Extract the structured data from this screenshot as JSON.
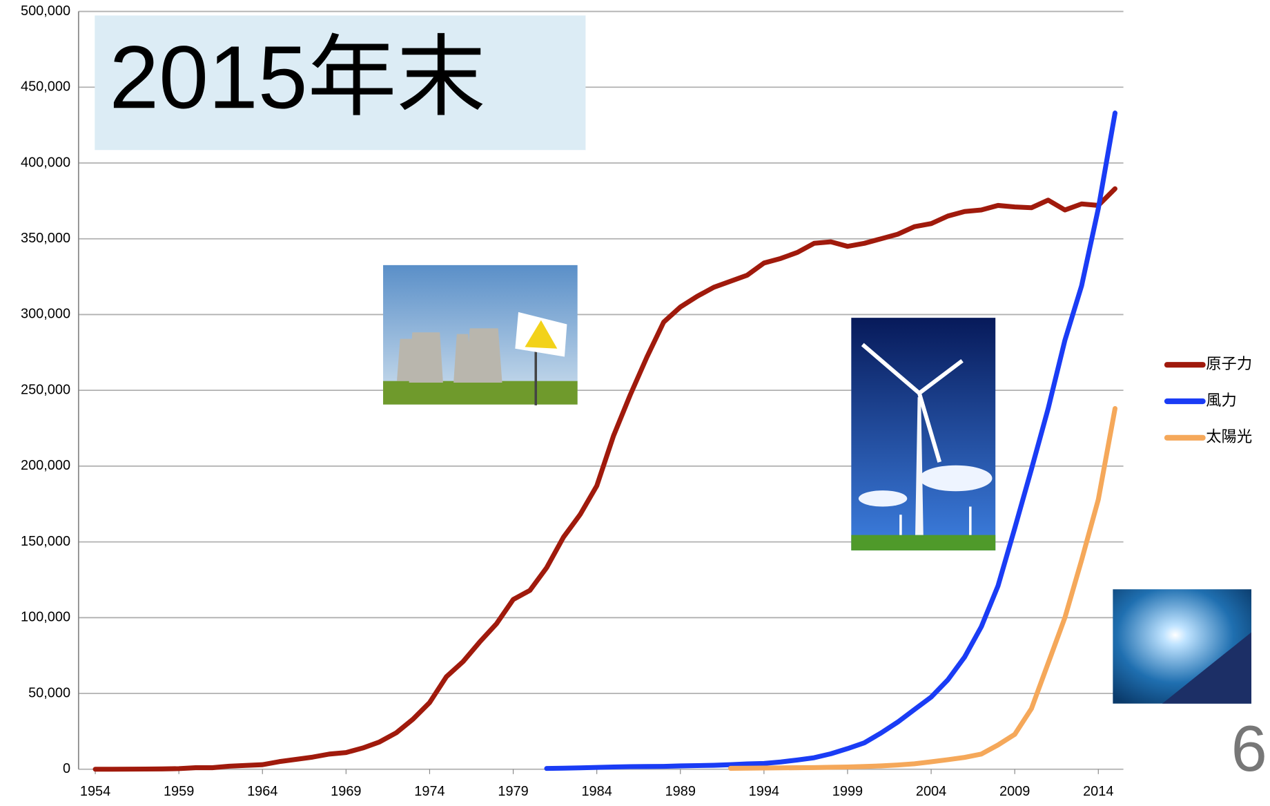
{
  "chart_data": {
    "type": "line",
    "title": "2015年末",
    "annotation": "6",
    "x": [
      1954,
      1955,
      1956,
      1957,
      1958,
      1959,
      1960,
      1961,
      1962,
      1963,
      1964,
      1965,
      1966,
      1967,
      1968,
      1969,
      1970,
      1971,
      1972,
      1973,
      1974,
      1975,
      1976,
      1977,
      1978,
      1979,
      1980,
      1981,
      1982,
      1983,
      1984,
      1985,
      1986,
      1987,
      1988,
      1989,
      1990,
      1991,
      1992,
      1993,
      1994,
      1995,
      1996,
      1997,
      1998,
      1999,
      2000,
      2001,
      2002,
      2003,
      2004,
      2005,
      2006,
      2007,
      2008,
      2009,
      2010,
      2011,
      2012,
      2013,
      2014,
      2015
    ],
    "series": [
      {
        "name": "原子力",
        "color": "#a01a0c",
        "values": [
          0,
          0,
          50,
          100,
          200,
          400,
          1000,
          1000,
          2000,
          2500,
          3000,
          5000,
          6500,
          8000,
          10000,
          11000,
          14000,
          18000,
          24000,
          33000,
          44000,
          61000,
          71000,
          84000,
          96000,
          112000,
          118000,
          133000,
          153000,
          168000,
          187000,
          220000,
          247000,
          272000,
          295000,
          305000,
          312000,
          318000,
          322000,
          326000,
          334000,
          337000,
          341000,
          347000,
          348000,
          345000,
          347000,
          350000,
          353000,
          358000,
          360000,
          365000,
          368000,
          369000,
          372000,
          371000,
          370500,
          375500,
          369000,
          373000,
          372000,
          383000
        ]
      },
      {
        "name": "風力",
        "color": "#1a3cf5",
        "values": [
          null,
          null,
          null,
          null,
          null,
          null,
          null,
          null,
          null,
          null,
          null,
          null,
          null,
          null,
          null,
          null,
          null,
          null,
          null,
          null,
          null,
          null,
          null,
          null,
          null,
          null,
          null,
          500,
          700,
          900,
          1200,
          1500,
          1700,
          1800,
          1900,
          2200,
          2400,
          2600,
          3000,
          3500,
          3800,
          4800,
          6100,
          7600,
          10200,
          13600,
          17400,
          23900,
          31100,
          39400,
          47600,
          59000,
          74000,
          94000,
          121000,
          159000,
          198000,
          238000,
          283000,
          319000,
          370000,
          433000
        ]
      },
      {
        "name": "太陽光",
        "color": "#f5a85a",
        "values": [
          null,
          null,
          null,
          null,
          null,
          null,
          null,
          null,
          null,
          null,
          null,
          null,
          null,
          null,
          null,
          null,
          null,
          null,
          null,
          null,
          null,
          null,
          null,
          null,
          null,
          null,
          null,
          null,
          null,
          null,
          null,
          null,
          null,
          null,
          null,
          null,
          null,
          null,
          600,
          700,
          800,
          900,
          1000,
          1100,
          1300,
          1500,
          1800,
          2200,
          2800,
          3600,
          4900,
          6300,
          7800,
          10000,
          16000,
          23000,
          40000,
          70000,
          100000,
          138000,
          178000,
          238000
        ]
      }
    ],
    "xlim": [
      1953,
      2015.5
    ],
    "xticks": [
      1954,
      1959,
      1964,
      1969,
      1974,
      1979,
      1984,
      1989,
      1994,
      1999,
      2004,
      2009,
      2014
    ],
    "ylim": [
      0,
      500000
    ],
    "yticks": [
      0,
      {
        "value": 50000,
        "label": "50,000"
      },
      {
        "value": 100000,
        "label": "100,000"
      },
      {
        "value": 150000,
        "label": "150,000"
      },
      {
        "value": 200000,
        "label": "200,000"
      },
      {
        "value": 250000,
        "label": "250,000"
      },
      {
        "value": 300000,
        "label": "300,000"
      },
      {
        "value": 350000,
        "label": "350,000"
      },
      {
        "value": 400000,
        "label": "400,000"
      },
      {
        "value": 450000,
        "label": "450,000"
      },
      {
        "value": 500000,
        "label": "500,000"
      }
    ],
    "grid": true,
    "legend": "right"
  }
}
